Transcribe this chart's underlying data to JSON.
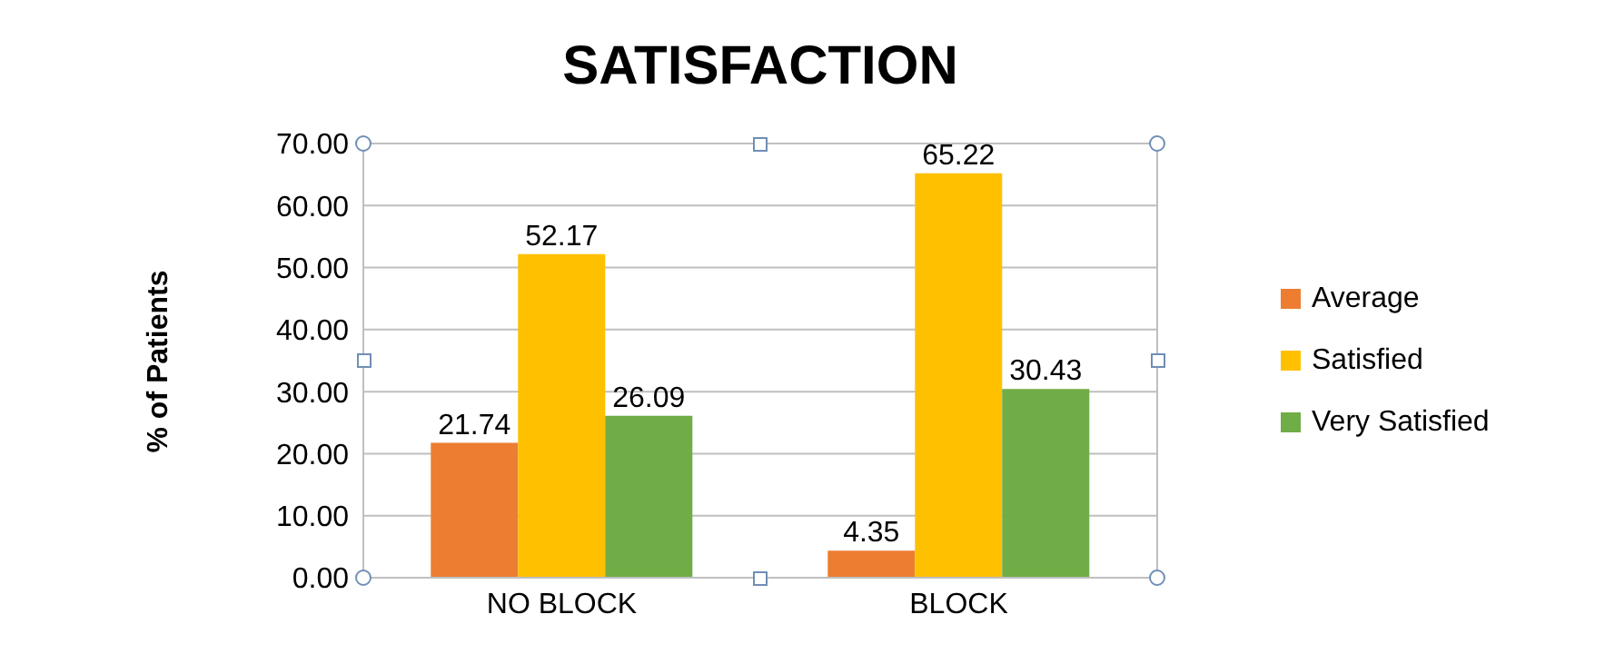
{
  "chart_data": {
    "type": "bar",
    "title": "SATISFACTION",
    "ylabel": "% of Patients",
    "categories": [
      "NO BLOCK",
      "BLOCK"
    ],
    "series": [
      {
        "name": "Average",
        "color": "#ed7d31",
        "values": [
          21.74,
          4.35
        ]
      },
      {
        "name": "Satisfied",
        "color": "#ffc000",
        "values": [
          52.17,
          65.22
        ]
      },
      {
        "name": "Very Satisfied",
        "color": "#70ad47",
        "values": [
          26.09,
          30.43
        ]
      }
    ],
    "ylim": [
      0,
      70
    ],
    "yticks": [
      {
        "value": 0,
        "label": "0.00"
      },
      {
        "value": 10,
        "label": "10.00"
      },
      {
        "value": 20,
        "label": "20.00"
      },
      {
        "value": 30,
        "label": "30.00"
      },
      {
        "value": 40,
        "label": "40.00"
      },
      {
        "value": 50,
        "label": "50.00"
      },
      {
        "value": 60,
        "label": "60.00"
      },
      {
        "value": 70,
        "label": "70.00"
      }
    ],
    "grid": "y",
    "legend": "right",
    "data_labels": true
  }
}
